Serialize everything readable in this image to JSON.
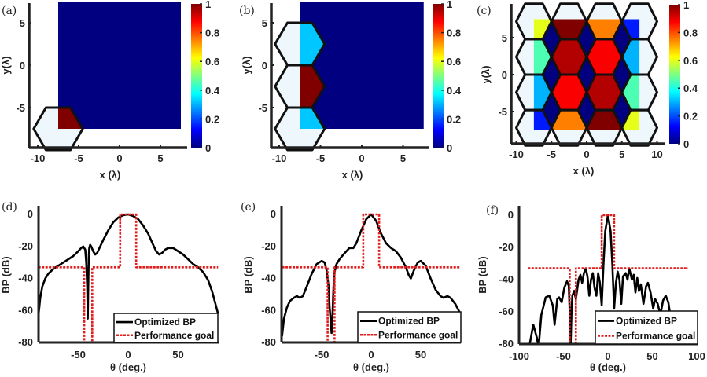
{
  "chart_data": [
    {
      "panel_label": "(a)",
      "type": "heatmap",
      "colormap": "jet",
      "clim": [
        0,
        1
      ],
      "xlabel": "x (λ)",
      "ylabel": "y(λ)",
      "xticks": [
        "-10",
        "-5",
        "0",
        "5"
      ],
      "yticks": [
        "5",
        "0",
        "-5"
      ],
      "colorbar_ticks": [
        "1",
        "0.8",
        "0.6",
        "0.4",
        "0.2",
        "0"
      ],
      "heatmap_extent": {
        "x": [
          -7.5,
          7.5
        ],
        "y": [
          -7.5,
          7.5
        ],
        "background_value": 0
      },
      "hex_cells": [
        {
          "x": -7.5,
          "y": -7.5,
          "value": 1.0
        }
      ]
    },
    {
      "panel_label": "(b)",
      "type": "heatmap",
      "colormap": "jet",
      "clim": [
        0,
        1
      ],
      "xlabel": "x (λ)",
      "ylabel": "y(λ)",
      "xticks": [
        "-10",
        "-5",
        "0",
        "5"
      ],
      "yticks": [
        "5",
        "0",
        "-5"
      ],
      "colorbar_ticks": [
        "1",
        "0.8",
        "0.6",
        "0.4",
        "0.2",
        "0"
      ],
      "heatmap_extent": {
        "x": [
          -7.5,
          7.5
        ],
        "y": [
          -7.5,
          7.5
        ],
        "background_value": 0
      },
      "hex_cells": [
        {
          "x": -7.5,
          "y": 2.5,
          "value": 0.32
        },
        {
          "x": -7.5,
          "y": -2.5,
          "value": 1.0
        },
        {
          "x": -7.5,
          "y": -7.5,
          "value": 0.32
        }
      ]
    },
    {
      "panel_label": "(c)",
      "type": "heatmap",
      "colormap": "jet",
      "clim": [
        0,
        1
      ],
      "xlabel": "x (λ)",
      "ylabel": "y(λ)",
      "xticks": [
        "-10",
        "-5",
        "0",
        "5",
        "10"
      ],
      "yticks": [
        "5",
        "0",
        "-5"
      ],
      "colorbar_ticks": [
        "1",
        "0.8",
        "0.6",
        "0.4",
        "0.2",
        "0"
      ],
      "heatmap_extent": {
        "x": [
          -7.5,
          7.5
        ],
        "y": [
          -7.5,
          7.5
        ],
        "background_value": 0
      },
      "hex_cells": [
        {
          "x": -7.5,
          "y": 7.2,
          "value": 0.6
        },
        {
          "x": -2.5,
          "y": 7.2,
          "value": 1.0
        },
        {
          "x": 2.5,
          "y": 7.2,
          "value": 0.75
        },
        {
          "x": 7.5,
          "y": 7.2,
          "value": 0.15
        },
        {
          "x": -7.5,
          "y": 2.4,
          "value": 0.45
        },
        {
          "x": -2.5,
          "y": 2.4,
          "value": 0.95
        },
        {
          "x": 2.5,
          "y": 2.4,
          "value": 0.88
        },
        {
          "x": 7.5,
          "y": 2.4,
          "value": 0.3
        },
        {
          "x": -7.5,
          "y": -2.4,
          "value": 0.3
        },
        {
          "x": -2.5,
          "y": -2.4,
          "value": 0.88
        },
        {
          "x": 2.5,
          "y": -2.4,
          "value": 0.95
        },
        {
          "x": 7.5,
          "y": -2.4,
          "value": 0.45
        },
        {
          "x": -7.5,
          "y": -7.2,
          "value": 0.15
        },
        {
          "x": -2.5,
          "y": -7.2,
          "value": 0.75
        },
        {
          "x": 2.5,
          "y": -7.2,
          "value": 1.0
        },
        {
          "x": 7.5,
          "y": -7.2,
          "value": 0.6
        }
      ]
    },
    {
      "panel_label": "(d)",
      "type": "line",
      "xlabel": "θ (deg.)",
      "ylabel": "BP (dB)",
      "xlim": [
        -90,
        90
      ],
      "ylim": [
        -80,
        5
      ],
      "xticks": [
        "-50",
        "0",
        "50"
      ],
      "yticks": [
        "0",
        "-20",
        "-40",
        "-60",
        "-80"
      ],
      "legend": {
        "placement": "bottom-right",
        "entries": [
          "Optimized BP",
          "Performance goal"
        ]
      },
      "series": [
        {
          "name": "Optimized BP",
          "color": "#000000",
          "style": "solid",
          "x": [
            -90,
            -88,
            -86,
            -83,
            -80,
            -75,
            -70,
            -65,
            -60,
            -55,
            -50,
            -47,
            -45,
            -44,
            -43,
            -42,
            -41,
            -40.5,
            -40,
            -39.5,
            -39,
            -38,
            -37,
            -35,
            -33,
            -31,
            -28,
            -25,
            -20,
            -15,
            -10,
            -5,
            0,
            5,
            10,
            15,
            20,
            25,
            28,
            31,
            34,
            37,
            40,
            45,
            50,
            55,
            60,
            65,
            70,
            75,
            80,
            84,
            87,
            90
          ],
          "y": [
            -64,
            -52,
            -45,
            -40,
            -37,
            -34,
            -32,
            -30,
            -28,
            -26,
            -23,
            -21,
            -20,
            -21,
            -22,
            -30,
            -45,
            -65,
            -45,
            -28,
            -21,
            -19,
            -20,
            -23,
            -25,
            -24,
            -20,
            -16,
            -10,
            -5,
            -2,
            -0.5,
            0,
            -1,
            -3,
            -7,
            -12,
            -19,
            -23,
            -25,
            -24,
            -22,
            -21,
            -21,
            -23,
            -25,
            -28,
            -31,
            -33,
            -36,
            -41,
            -48,
            -55,
            -62
          ]
        },
        {
          "name": "Performance goal",
          "color": "#e01e1e",
          "style": "dotted",
          "x": [
            -90,
            -44,
            -44,
            -36,
            -36,
            -8,
            -8,
            8,
            8,
            90
          ],
          "y": [
            -33,
            -33,
            -80,
            -80,
            -33,
            -33,
            0,
            0,
            -33,
            -33
          ]
        }
      ]
    },
    {
      "panel_label": "(e)",
      "type": "line",
      "xlabel": "θ (deg.)",
      "ylabel": "BP (dB)",
      "xlim": [
        -90,
        90
      ],
      "ylim": [
        -80,
        5
      ],
      "xticks": [
        "-50",
        "0",
        "50"
      ],
      "yticks": [
        "0",
        "-20",
        "-40",
        "-60",
        "-80"
      ],
      "legend": {
        "placement": "bottom-right",
        "entries": [
          "Optimized BP",
          "Performance goal"
        ]
      },
      "series": [
        {
          "name": "Optimized BP",
          "color": "#000000",
          "style": "solid",
          "x": [
            -90,
            -88,
            -85,
            -82,
            -78,
            -75,
            -72,
            -69,
            -65,
            -60,
            -55,
            -50,
            -47,
            -45,
            -43,
            -42,
            -41,
            -40,
            -39,
            -38,
            -37,
            -35,
            -32,
            -28,
            -25,
            -22,
            -18,
            -15,
            -10,
            -5,
            0,
            5,
            10,
            15,
            20,
            25,
            30,
            35,
            38,
            40,
            43,
            47,
            50,
            55,
            60,
            65,
            70,
            73,
            77,
            80,
            85,
            90
          ],
          "y": [
            -76,
            -65,
            -58,
            -54,
            -52,
            -51,
            -52,
            -51,
            -45,
            -37,
            -31,
            -29,
            -30,
            -35,
            -45,
            -58,
            -65,
            -74,
            -62,
            -45,
            -36,
            -31,
            -28,
            -25,
            -23,
            -21,
            -21,
            -18,
            -10,
            -3,
            0,
            -4,
            -12,
            -18,
            -21,
            -23,
            -27,
            -33,
            -38,
            -40,
            -35,
            -30,
            -29,
            -32,
            -40,
            -47,
            -51,
            -52,
            -51,
            -52,
            -56,
            -62
          ]
        },
        {
          "name": "Performance goal",
          "color": "#e01e1e",
          "style": "dotted",
          "x": [
            -90,
            -44,
            -44,
            -37,
            -37,
            -8,
            -8,
            8,
            8,
            90
          ],
          "y": [
            -33,
            -33,
            -80,
            -80,
            -33,
            -33,
            0,
            0,
            -33,
            -33
          ]
        }
      ]
    },
    {
      "panel_label": "(f)",
      "type": "line",
      "xlabel": "θ (deg.)",
      "ylabel": "BP (dB)",
      "xlim": [
        -100,
        100
      ],
      "ylim": [
        -80,
        5
      ],
      "xticks": [
        "-100",
        "-50",
        "0",
        "50",
        "100"
      ],
      "yticks": [
        "0",
        "-20",
        "-40",
        "-60",
        "-80"
      ],
      "legend": {
        "placement": "bottom-right",
        "entries": [
          "Optimized BP",
          "Performance goal"
        ]
      },
      "series": [
        {
          "name": "Optimized BP",
          "color": "#000000",
          "style": "solid",
          "x": [
            -88,
            -84,
            -80,
            -78,
            -75,
            -70,
            -66,
            -62,
            -60,
            -57,
            -55,
            -52,
            -49,
            -46,
            -44,
            -43,
            -42,
            -41,
            -40,
            -38,
            -36,
            -33,
            -31,
            -29,
            -27,
            -25,
            -23,
            -21,
            -19,
            -17,
            -15,
            -13,
            -11,
            -9,
            -7,
            -5,
            -3,
            0,
            3,
            5,
            7,
            9,
            11,
            13,
            15,
            17,
            20,
            22,
            24,
            27,
            29,
            31,
            33,
            35,
            37,
            40,
            43,
            45,
            48,
            51,
            53,
            56,
            59,
            62,
            65,
            68,
            71,
            74
          ],
          "y": [
            -80,
            -68,
            -76,
            -82,
            -62,
            -51,
            -50,
            -56,
            -68,
            -52,
            -51,
            -54,
            -45,
            -41,
            -44,
            -60,
            -82,
            -60,
            -50,
            -47,
            -52,
            -40,
            -37,
            -42,
            -36,
            -33,
            -38,
            -50,
            -40,
            -36,
            -45,
            -50,
            -36,
            -42,
            -56,
            -30,
            -10,
            0,
            -10,
            -30,
            -58,
            -42,
            -35,
            -40,
            -55,
            -38,
            -36,
            -40,
            -33,
            -40,
            -37,
            -48,
            -39,
            -47,
            -43,
            -55,
            -44,
            -42,
            -48,
            -58,
            -52,
            -55,
            -62,
            -53,
            -50,
            -54,
            -65,
            -82
          ]
        },
        {
          "name": "Performance goal",
          "color": "#e01e1e",
          "style": "dotted",
          "x": [
            -90,
            -43,
            -43,
            -36,
            -36,
            -7,
            -7,
            7,
            7,
            90
          ],
          "y": [
            -33,
            -33,
            -80,
            -80,
            -33,
            -33,
            0,
            0,
            -33,
            -33
          ]
        }
      ]
    }
  ]
}
